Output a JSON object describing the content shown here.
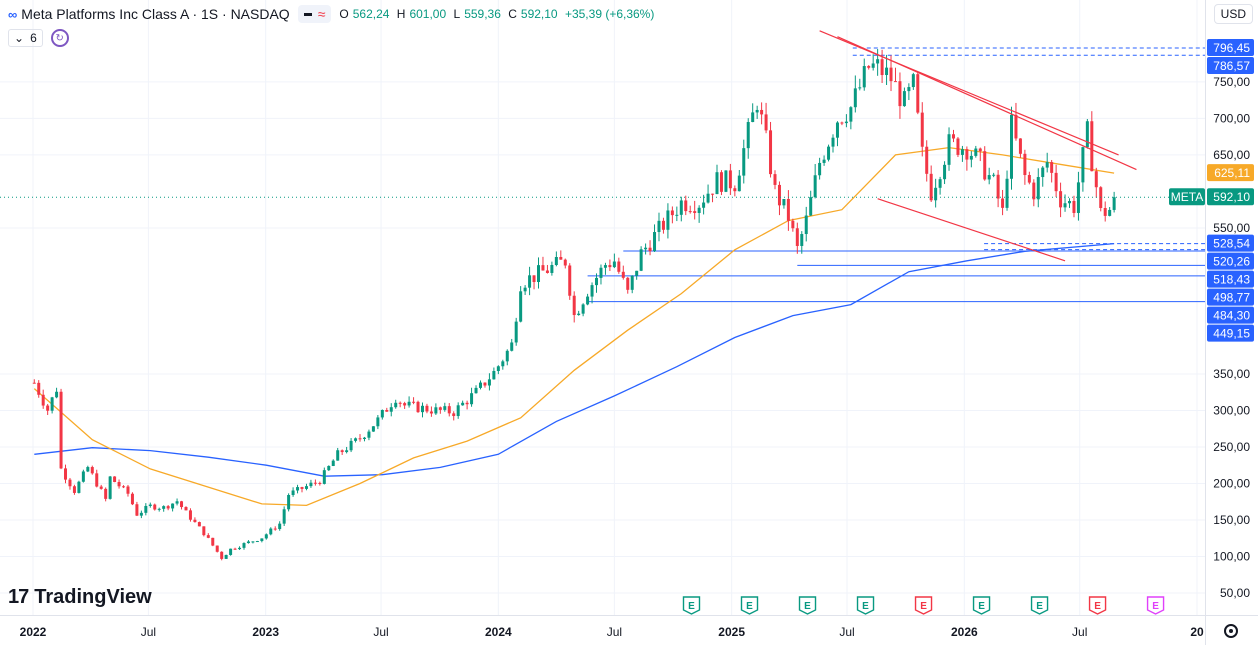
{
  "header": {
    "symbol_title": "Meta Platforms Inc Class A · 1S · NASDAQ",
    "logo": "∞",
    "open_label": "O",
    "open": "562,24",
    "high_label": "H",
    "high": "601,00",
    "low_label": "L",
    "low": "559,36",
    "close_label": "C",
    "close": "592,10",
    "change": "+35,39 (+6,36%)",
    "indicator_count": "6",
    "currency": "USD"
  },
  "branding": {
    "logo_mark": "17",
    "logo_text": "TradingView"
  },
  "colors": {
    "up": "#089981",
    "down": "#f23645",
    "ma50": "#f7a928",
    "ma200": "#2962ff",
    "trend": "#f23645",
    "hline": "#2962ff",
    "earnings": "#089981",
    "earnings_neg": "#f23645",
    "dividend": "#e040fb"
  },
  "chart_data": {
    "type": "candlestick",
    "interval": "1W",
    "ylim": [
      45,
      830
    ],
    "y_ticks": [
      50,
      100,
      150,
      200,
      250,
      300,
      350,
      550,
      650,
      700,
      750
    ],
    "y_tick_labels": [
      "50,00",
      "100,00",
      "150,00",
      "200,00",
      "250,00",
      "300,00",
      "350,00",
      "550,00",
      "650,00",
      "700,00",
      "750,00"
    ],
    "x_ticks": [
      {
        "label": "2022",
        "date": "2022-01-01"
      },
      {
        "label": "Jul",
        "date": "2022-07-01"
      },
      {
        "label": "2023",
        "date": "2023-01-01"
      },
      {
        "label": "Jul",
        "date": "2023-07-01"
      },
      {
        "label": "2024",
        "date": "2024-01-01"
      },
      {
        "label": "Jul",
        "date": "2024-07-01"
      },
      {
        "label": "2025",
        "date": "2025-01-01"
      },
      {
        "label": "Jul",
        "date": "2025-07-01"
      },
      {
        "label": "2026",
        "date": "2026-01-01"
      },
      {
        "label": "Jul",
        "date": "2026-07-01"
      },
      {
        "label": "20",
        "date": "2027-01-01"
      }
    ],
    "last_price": {
      "symbol": "META",
      "value": 592.1,
      "label": "592,10"
    },
    "ma50_value": {
      "value": 625.11,
      "label": "625,11"
    },
    "price_levels": [
      {
        "value": 796.45,
        "label": "796,45",
        "style": "dashed"
      },
      {
        "value": 786.57,
        "label": "786,57",
        "style": "dashed"
      },
      {
        "value": 528.54,
        "label": "528,54",
        "style": "dashed"
      },
      {
        "value": 520.26,
        "label": "520,26",
        "style": "dashed"
      },
      {
        "value": 518.43,
        "label": "518,43",
        "style": "solid"
      },
      {
        "value": 498.77,
        "label": "498,77",
        "style": "solid"
      },
      {
        "value": 484.3,
        "label": "484,30",
        "style": "solid"
      },
      {
        "value": 449.15,
        "label": "449,15",
        "style": "solid"
      }
    ],
    "events": [
      {
        "date": "2024-10-30",
        "type": "E",
        "result": "beat"
      },
      {
        "date": "2025-01-29",
        "type": "E",
        "result": "beat"
      },
      {
        "date": "2025-04-30",
        "type": "E",
        "result": "beat"
      },
      {
        "date": "2025-07-30",
        "type": "E",
        "result": "beat"
      },
      {
        "date": "2025-10-29",
        "type": "E",
        "result": "miss"
      },
      {
        "date": "2026-01-28",
        "type": "E",
        "result": "beat"
      },
      {
        "date": "2026-04-29",
        "type": "E",
        "result": "beat"
      },
      {
        "date": "2026-07-29",
        "type": "E",
        "result": "miss"
      },
      {
        "date": "2026-10-28",
        "type": "E",
        "result": "upcoming"
      }
    ],
    "trendlines": [
      {
        "from": [
          "2025-05-19",
          820
        ],
        "to": [
          "2026-08-31",
          650
        ]
      },
      {
        "from": [
          "2025-06-16",
          812
        ],
        "to": [
          "2026-09-28",
          630
        ]
      },
      {
        "from": [
          "2025-08-18",
          590
        ],
        "to": [
          "2026-06-08",
          505
        ]
      }
    ],
    "pivots": [
      [
        "2022-01-03",
        338
      ],
      [
        "2022-01-24",
        301
      ],
      [
        "2022-02-07",
        330
      ],
      [
        "2022-02-14",
        220
      ],
      [
        "2022-03-07",
        190
      ],
      [
        "2022-03-28",
        222
      ],
      [
        "2022-04-25",
        178
      ],
      [
        "2022-05-02",
        208
      ],
      [
        "2022-05-30",
        186
      ],
      [
        "2022-06-13",
        158
      ],
      [
        "2022-07-04",
        169
      ],
      [
        "2022-07-25",
        167
      ],
      [
        "2022-08-15",
        176
      ],
      [
        "2022-08-29",
        160
      ],
      [
        "2022-09-26",
        132
      ],
      [
        "2022-10-24",
        98
      ],
      [
        "2022-11-07",
        110
      ],
      [
        "2022-11-28",
        117
      ],
      [
        "2022-12-26",
        126
      ],
      [
        "2023-01-23",
        145
      ],
      [
        "2023-02-06",
        185
      ],
      [
        "2023-03-27",
        204
      ],
      [
        "2023-04-24",
        240
      ],
      [
        "2023-05-29",
        262
      ],
      [
        "2023-06-26",
        287
      ],
      [
        "2023-07-24",
        318
      ],
      [
        "2023-08-07",
        307
      ],
      [
        "2023-09-25",
        300
      ],
      [
        "2023-10-23",
        298
      ],
      [
        "2023-11-27",
        325
      ],
      [
        "2023-12-26",
        353
      ],
      [
        "2024-01-22",
        390
      ],
      [
        "2024-02-05",
        475
      ],
      [
        "2024-03-11",
        490
      ],
      [
        "2024-04-15",
        505
      ],
      [
        "2024-04-29",
        430
      ],
      [
        "2024-05-20",
        465
      ],
      [
        "2024-06-17",
        500
      ],
      [
        "2024-07-01",
        505
      ],
      [
        "2024-07-22",
        460
      ],
      [
        "2024-08-12",
        515
      ],
      [
        "2024-09-16",
        555
      ],
      [
        "2024-10-14",
        585
      ],
      [
        "2024-11-11",
        585
      ],
      [
        "2024-12-09",
        615
      ],
      [
        "2025-01-06",
        612
      ],
      [
        "2025-02-10",
        725
      ],
      [
        "2025-02-24",
        668
      ],
      [
        "2025-03-10",
        600
      ],
      [
        "2025-03-31",
        565
      ],
      [
        "2025-04-14",
        520
      ],
      [
        "2025-04-28",
        560
      ],
      [
        "2025-05-19",
        640
      ],
      [
        "2025-06-16",
        700
      ],
      [
        "2025-07-07",
        715
      ],
      [
        "2025-08-04",
        770
      ],
      [
        "2025-08-18",
        770
      ],
      [
        "2025-09-08",
        755
      ],
      [
        "2025-09-29",
        720
      ],
      [
        "2025-10-13",
        745
      ],
      [
        "2025-10-27",
        650
      ],
      [
        "2025-11-10",
        600
      ],
      [
        "2025-12-08",
        665
      ],
      [
        "2026-01-05",
        660
      ],
      [
        "2026-01-26",
        640
      ],
      [
        "2026-02-16",
        610
      ],
      [
        "2026-03-02",
        570
      ],
      [
        "2026-03-16",
        690
      ],
      [
        "2026-04-06",
        620
      ],
      [
        "2026-04-20",
        600
      ],
      [
        "2026-05-11",
        640
      ],
      [
        "2026-06-01",
        590
      ],
      [
        "2026-06-22",
        580
      ],
      [
        "2026-07-13",
        680
      ],
      [
        "2026-08-03",
        570
      ],
      [
        "2026-08-17",
        575
      ],
      [
        "2026-08-24",
        592.1
      ]
    ],
    "ma50_points": [
      [
        "2022-01-03",
        330
      ],
      [
        "2022-04-04",
        260
      ],
      [
        "2022-07-04",
        220
      ],
      [
        "2022-10-03",
        195
      ],
      [
        "2022-12-26",
        172
      ],
      [
        "2023-03-06",
        170
      ],
      [
        "2023-05-29",
        200
      ],
      [
        "2023-08-21",
        235
      ],
      [
        "2023-11-13",
        258
      ],
      [
        "2024-02-05",
        290
      ],
      [
        "2024-04-29",
        355
      ],
      [
        "2024-07-22",
        410
      ],
      [
        "2024-10-14",
        460
      ],
      [
        "2025-01-06",
        520
      ],
      [
        "2025-03-31",
        560
      ],
      [
        "2025-06-23",
        575
      ],
      [
        "2025-09-15",
        650
      ],
      [
        "2025-12-08",
        660
      ],
      [
        "2026-03-02",
        650
      ],
      [
        "2026-05-25",
        638
      ],
      [
        "2026-08-24",
        625.11
      ]
    ],
    "ma200_points": [
      [
        "2022-01-03",
        240
      ],
      [
        "2022-04-04",
        249
      ],
      [
        "2022-07-04",
        245
      ],
      [
        "2022-10-03",
        236
      ],
      [
        "2023-01-02",
        225
      ],
      [
        "2023-04-03",
        210
      ],
      [
        "2023-07-03",
        212
      ],
      [
        "2023-10-02",
        222
      ],
      [
        "2024-01-01",
        240
      ],
      [
        "2024-04-01",
        285
      ],
      [
        "2024-07-01",
        320
      ],
      [
        "2024-10-07",
        360
      ],
      [
        "2025-01-06",
        400
      ],
      [
        "2025-04-07",
        430
      ],
      [
        "2025-07-07",
        445
      ],
      [
        "2025-10-06",
        490
      ],
      [
        "2026-01-05",
        505
      ],
      [
        "2026-04-06",
        518
      ],
      [
        "2026-08-24",
        528.54
      ]
    ]
  }
}
